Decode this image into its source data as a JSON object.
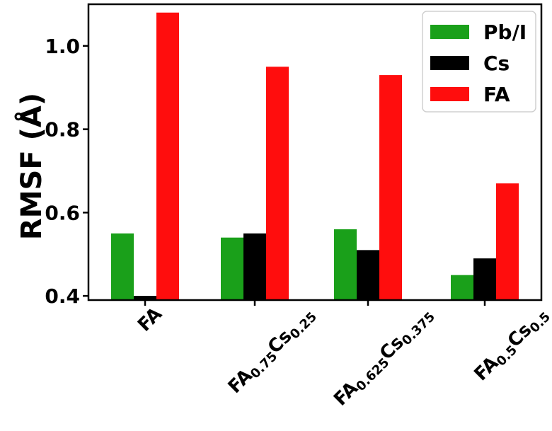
{
  "chart_data": {
    "type": "bar",
    "ylabel": "RMSF (Å)",
    "ylim": [
      0.39,
      1.1
    ],
    "yticks": [
      "0.4",
      "0.6",
      "0.8",
      "1.0"
    ],
    "categories": [
      {
        "main1": "FA",
        "sub1": "",
        "main2": "",
        "sub2": ""
      },
      {
        "main1": "FA",
        "sub1": "0.75",
        "main2": "Cs",
        "sub2": "0.25"
      },
      {
        "main1": "FA",
        "sub1": "0.625",
        "main2": "Cs",
        "sub2": "0.375"
      },
      {
        "main1": "FA",
        "sub1": "0.5",
        "main2": "Cs",
        "sub2": "0.5"
      }
    ],
    "series": [
      {
        "name": "Pb/I",
        "color": "#1aa01a",
        "values": [
          0.55,
          0.54,
          0.56,
          0.45
        ]
      },
      {
        "name": "Cs",
        "color": "#000000",
        "values": [
          0.4,
          0.55,
          0.51,
          0.49
        ]
      },
      {
        "name": "FA",
        "color": "#ff0d0d",
        "values": [
          1.08,
          0.95,
          0.93,
          0.67
        ]
      }
    ],
    "legend_position": "top-right",
    "grid": false
  }
}
